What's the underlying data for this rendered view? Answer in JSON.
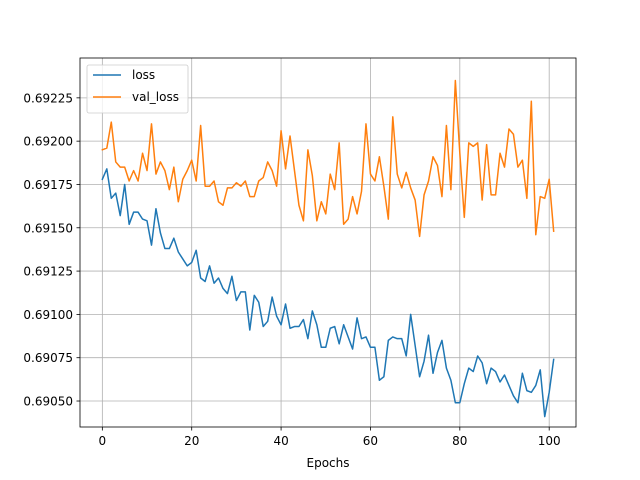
{
  "chart_data": {
    "type": "line",
    "xlabel": "Epochs",
    "ylabel": "",
    "xlim": [
      -5,
      106
    ],
    "ylim": [
      0.69035,
      0.69248
    ],
    "xticks": [
      0,
      20,
      40,
      60,
      80,
      100
    ],
    "yticks": [
      0.6905,
      0.69075,
      0.691,
      0.69125,
      0.6915,
      0.69175,
      0.692,
      0.69225
    ],
    "ytick_labels": [
      "0.69050",
      "0.69075",
      "0.69100",
      "0.69125",
      "0.69150",
      "0.69175",
      "0.69200",
      "0.69225"
    ],
    "grid": true,
    "legend": "top-left",
    "x": [
      0,
      1,
      2,
      3,
      4,
      5,
      6,
      7,
      8,
      9,
      10,
      11,
      12,
      13,
      14,
      15,
      16,
      17,
      18,
      19,
      20,
      21,
      22,
      23,
      24,
      25,
      26,
      27,
      28,
      29,
      30,
      31,
      32,
      33,
      34,
      35,
      36,
      37,
      38,
      39,
      40,
      41,
      42,
      43,
      44,
      45,
      46,
      47,
      48,
      49,
      50,
      51,
      52,
      53,
      54,
      55,
      56,
      57,
      58,
      59,
      60,
      61,
      62,
      63,
      64,
      65,
      66,
      67,
      68,
      69,
      70,
      71,
      72,
      73,
      74,
      75,
      76,
      77,
      78,
      79,
      80,
      81,
      82,
      83,
      84,
      85,
      86,
      87,
      88,
      89,
      90,
      91,
      92,
      93,
      94,
      95,
      96,
      97,
      98,
      99,
      100,
      101
    ],
    "series": [
      {
        "name": "loss",
        "color": "#1f77b4",
        "values": [
          0.69178,
          0.69184,
          0.69167,
          0.6917,
          0.69157,
          0.69175,
          0.69152,
          0.69159,
          0.69159,
          0.69155,
          0.69154,
          0.6914,
          0.69161,
          0.69147,
          0.69138,
          0.69138,
          0.69144,
          0.69136,
          0.69132,
          0.69128,
          0.6913,
          0.69137,
          0.69121,
          0.69119,
          0.69128,
          0.69118,
          0.69121,
          0.69115,
          0.69112,
          0.69122,
          0.69108,
          0.69113,
          0.69113,
          0.69091,
          0.69111,
          0.69107,
          0.69093,
          0.69096,
          0.6911,
          0.69099,
          0.69094,
          0.69106,
          0.69092,
          0.69093,
          0.69093,
          0.69097,
          0.69086,
          0.69102,
          0.69094,
          0.69081,
          0.69081,
          0.69092,
          0.69093,
          0.69083,
          0.69094,
          0.69087,
          0.6908,
          0.69098,
          0.69086,
          0.69087,
          0.69081,
          0.69081,
          0.69062,
          0.69064,
          0.69085,
          0.69087,
          0.69086,
          0.69086,
          0.69076,
          0.691,
          0.69082,
          0.69064,
          0.69073,
          0.69088,
          0.69066,
          0.69078,
          0.69085,
          0.69069,
          0.69062,
          0.69049,
          0.69049,
          0.6906,
          0.69069,
          0.69067,
          0.69076,
          0.69072,
          0.6906,
          0.69069,
          0.69067,
          0.69061,
          0.69065,
          0.69059,
          0.69053,
          0.69049,
          0.69066,
          0.69056,
          0.69055,
          0.69059,
          0.69068,
          0.69041,
          0.69055,
          0.69074
        ]
      },
      {
        "name": "val_loss",
        "color": "#ff7f0e",
        "values": [
          0.69195,
          0.69196,
          0.69211,
          0.69188,
          0.69185,
          0.69185,
          0.69177,
          0.69183,
          0.69177,
          0.69193,
          0.69183,
          0.6921,
          0.69181,
          0.69188,
          0.69183,
          0.69172,
          0.69185,
          0.69165,
          0.69178,
          0.69183,
          0.69189,
          0.69177,
          0.69209,
          0.69174,
          0.69174,
          0.69177,
          0.69165,
          0.69163,
          0.69173,
          0.69173,
          0.69176,
          0.69174,
          0.69177,
          0.69168,
          0.69168,
          0.69177,
          0.69179,
          0.69188,
          0.69183,
          0.69174,
          0.69206,
          0.69184,
          0.69203,
          0.69183,
          0.69163,
          0.69154,
          0.69195,
          0.6918,
          0.69154,
          0.69165,
          0.69158,
          0.69181,
          0.69172,
          0.69199,
          0.69152,
          0.69155,
          0.69168,
          0.69158,
          0.69171,
          0.6921,
          0.69181,
          0.69177,
          0.69191,
          0.69174,
          0.69155,
          0.69214,
          0.69181,
          0.69173,
          0.69182,
          0.69173,
          0.69166,
          0.69145,
          0.69169,
          0.69177,
          0.69191,
          0.69186,
          0.69168,
          0.69209,
          0.69172,
          0.69235,
          0.69193,
          0.69156,
          0.69199,
          0.69197,
          0.69199,
          0.69166,
          0.69198,
          0.69169,
          0.69169,
          0.69193,
          0.69185,
          0.69207,
          0.69204,
          0.69185,
          0.69189,
          0.69167,
          0.69223,
          0.69146,
          0.69168,
          0.69167,
          0.69178,
          0.69148
        ]
      }
    ]
  }
}
